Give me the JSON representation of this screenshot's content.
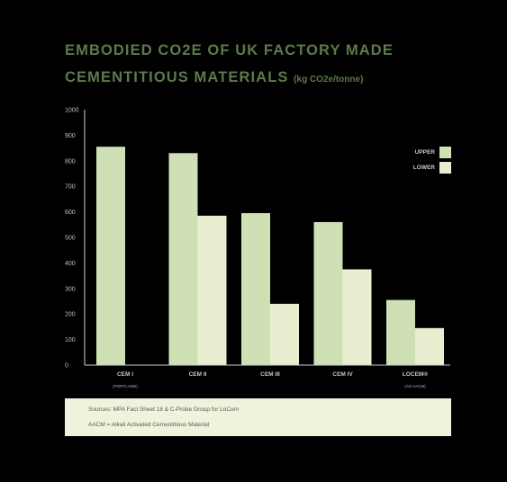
{
  "title_line1": "EMBODIED CO2E OF UK FACTORY MADE",
  "title_line2": "CEMENTITIOUS MATERIALS",
  "title_unit": "(kg CO2e/tonne)",
  "chart_data": {
    "type": "bar",
    "title": "EMBODIED CO2E OF UK FACTORY MADE CEMENTITIOUS MATERIALS (kg CO2e/tonne)",
    "categories": [
      "CEM I",
      "CEM II",
      "CEM III",
      "CEM IV",
      "LOCEM®"
    ],
    "category_sublabels": [
      "(PORTLAND)",
      "",
      "",
      "",
      "(AN AACM)"
    ],
    "series": [
      {
        "name": "UPPER",
        "values": [
          855,
          830,
          595,
          560,
          255
        ],
        "color": "#cfe0b5"
      },
      {
        "name": "LOWER",
        "values": [
          null,
          585,
          240,
          375,
          145
        ],
        "color": "#e8efd0"
      }
    ],
    "yticks": [
      0,
      100,
      200,
      300,
      400,
      500,
      600,
      700,
      800,
      900,
      1000
    ],
    "ylim": [
      0,
      1000
    ],
    "xlabel": "",
    "ylabel": "",
    "grid": false,
    "legend": "top-right"
  },
  "sources": {
    "line1": "Sources: MPA Fact Sheet 18 & C-Probe Group for LoCem",
    "line2": "AACM = Alkali Activated Cementitious Material"
  }
}
